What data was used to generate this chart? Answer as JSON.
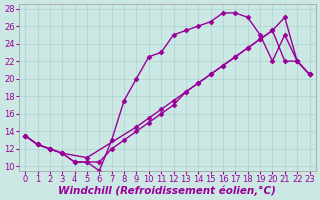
{
  "xlabel": "Windchill (Refroidissement éolien,°C)",
  "bg_color": "#cce8e4",
  "line_color": "#990099",
  "grid_color": "#aad4d0",
  "xlim": [
    -0.5,
    23.5
  ],
  "ylim": [
    9.5,
    28.5
  ],
  "xticks": [
    0,
    1,
    2,
    3,
    4,
    5,
    6,
    7,
    8,
    9,
    10,
    11,
    12,
    13,
    14,
    15,
    16,
    17,
    18,
    19,
    20,
    21,
    22,
    23
  ],
  "yticks": [
    10,
    12,
    14,
    16,
    18,
    20,
    22,
    24,
    26,
    28
  ],
  "line1_x": [
    0,
    1,
    2,
    3,
    4,
    5,
    6,
    7,
    8,
    9,
    10,
    11,
    12,
    13,
    14,
    15,
    16,
    17,
    18,
    19,
    20,
    21,
    22,
    23
  ],
  "line1_y": [
    13.5,
    12.5,
    12.0,
    11.5,
    10.5,
    10.5,
    9.5,
    13.0,
    17.5,
    20.0,
    22.5,
    23.0,
    25.0,
    25.5,
    26.0,
    26.5,
    27.5,
    27.5,
    27.0,
    25.0,
    22.0,
    25.0,
    22.0,
    20.5
  ],
  "line2_x": [
    0,
    1,
    2,
    3,
    4,
    5,
    6,
    7,
    8,
    9,
    10,
    11,
    12,
    13,
    14,
    15,
    16,
    17,
    18,
    19,
    20,
    21,
    22,
    23
  ],
  "line2_y": [
    13.5,
    12.5,
    12.0,
    11.5,
    10.5,
    10.5,
    10.5,
    12.0,
    13.0,
    14.0,
    15.0,
    16.0,
    17.0,
    18.5,
    19.5,
    20.5,
    21.5,
    22.5,
    23.5,
    24.5,
    25.5,
    22.0,
    22.0,
    20.5
  ],
  "line3_x": [
    0,
    1,
    2,
    3,
    5,
    9,
    10,
    11,
    12,
    13,
    14,
    15,
    16,
    17,
    18,
    19,
    20,
    21,
    22,
    23
  ],
  "line3_y": [
    13.5,
    12.5,
    12.0,
    11.5,
    11.0,
    14.5,
    15.5,
    16.5,
    17.5,
    18.5,
    19.5,
    20.5,
    21.5,
    22.5,
    23.5,
    24.5,
    25.5,
    27.0,
    22.0,
    20.5
  ],
  "marker": "D",
  "markersize": 2.5,
  "linewidth": 1.0,
  "tick_fontsize": 6,
  "label_fontsize": 7.5
}
